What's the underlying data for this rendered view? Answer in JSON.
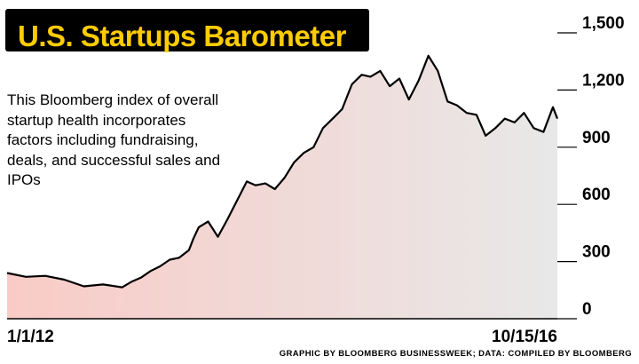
{
  "title": "U.S. Startups Barometer",
  "description": "This Bloomberg index of overall startup health incorporates factors including fundraising, deals, and successful sales and IPOs",
  "credit": "GRAPHIC BY BLOOMBERG BUSINESSWEEK; DATA: COMPILED BY BLOOMBERG",
  "colors": {
    "title_bg": "#000000",
    "title_text": "#ffcc00",
    "area_start": "#f9cbc6",
    "area_end": "#e8e8e8",
    "line": "#000000"
  },
  "chart_data": {
    "type": "area",
    "title": "U.S. Startups Barometer",
    "xlabel": "",
    "ylabel": "",
    "x_range": [
      "1/1/12",
      "10/15/16"
    ],
    "x_tick_labels": [
      "1/1/12",
      "10/15/16"
    ],
    "y_ticks": [
      0,
      300,
      600,
      900,
      1200,
      1500
    ],
    "y_tick_labels": [
      "0",
      "300",
      "600",
      "900",
      "1,200",
      "1,500"
    ],
    "ylim": [
      0,
      1500
    ],
    "grid": false,
    "y_axis_side": "right",
    "x": [
      "2012-01-01",
      "2012-03-01",
      "2012-05-01",
      "2012-07-01",
      "2012-09-01",
      "2012-11-01",
      "2013-01-01",
      "2013-02-01",
      "2013-03-01",
      "2013-04-01",
      "2013-05-01",
      "2013-06-01",
      "2013-07-01",
      "2013-08-01",
      "2013-08-15",
      "2013-09-01",
      "2013-10-01",
      "2013-11-01",
      "2013-12-01",
      "2014-01-01",
      "2014-02-01",
      "2014-03-01",
      "2014-04-01",
      "2014-05-01",
      "2014-06-01",
      "2014-07-01",
      "2014-08-01",
      "2014-09-01",
      "2014-10-01",
      "2014-11-01",
      "2014-12-01",
      "2015-01-01",
      "2015-02-01",
      "2015-03-01",
      "2015-04-01",
      "2015-05-01",
      "2015-06-01",
      "2015-07-01",
      "2015-08-01",
      "2015-09-01",
      "2015-10-01",
      "2015-11-01",
      "2015-12-01",
      "2016-01-01",
      "2016-02-01",
      "2016-03-01",
      "2016-04-01",
      "2016-05-01",
      "2016-06-01",
      "2016-07-01",
      "2016-08-01",
      "2016-09-01",
      "2016-10-01",
      "2016-10-15"
    ],
    "values": [
      240,
      220,
      225,
      205,
      170,
      180,
      165,
      195,
      215,
      250,
      275,
      310,
      320,
      360,
      420,
      480,
      510,
      430,
      520,
      620,
      720,
      700,
      710,
      680,
      740,
      820,
      870,
      900,
      1000,
      1050,
      1100,
      1230,
      1280,
      1270,
      1300,
      1220,
      1260,
      1150,
      1250,
      1380,
      1300,
      1140,
      1120,
      1080,
      1070,
      960,
      1000,
      1050,
      1030,
      1080,
      1000,
      980,
      1110,
      1050
    ]
  }
}
